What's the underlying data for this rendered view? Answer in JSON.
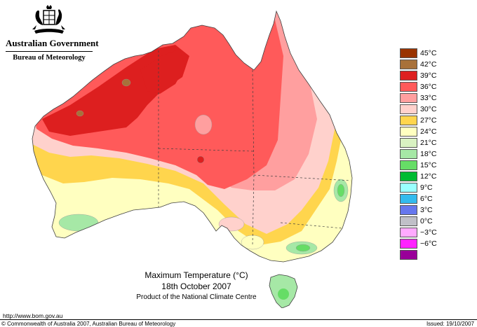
{
  "header": {
    "government": "Australian Government",
    "bureau": "Bureau of Meteorology"
  },
  "map": {
    "title": "Maximum Temperature (°C)",
    "date": "18th October 2007",
    "product": "Product of the National Climate Centre",
    "colors": {
      "land_cooler": "#ffffc0",
      "ocean": "#ffffff",
      "c15": "#66dd66",
      "c18": "#a6e8a6",
      "c21": "#d9f2c2",
      "c24": "#ffffc0",
      "c27": "#ffd54d",
      "c30": "#ffd1cc",
      "c33": "#ff9f9f",
      "c36": "#ff5a5a",
      "c39": "#dd1f1f",
      "c42": "#a8713a",
      "border": "#404040"
    }
  },
  "legend": [
    {
      "label": "45°C",
      "color": "#993300"
    },
    {
      "label": "42°C",
      "color": "#a8713a"
    },
    {
      "label": "39°C",
      "color": "#dd1f1f"
    },
    {
      "label": "36°C",
      "color": "#ff5a5a"
    },
    {
      "label": "33°C",
      "color": "#ff9f9f"
    },
    {
      "label": "30°C",
      "color": "#ffd1cc"
    },
    {
      "label": "27°C",
      "color": "#ffd54d"
    },
    {
      "label": "24°C",
      "color": "#ffffc0"
    },
    {
      "label": "21°C",
      "color": "#d9f2c2"
    },
    {
      "label": "18°C",
      "color": "#a6e8a6"
    },
    {
      "label": "15°C",
      "color": "#66dd66"
    },
    {
      "label": "12°C",
      "color": "#00bb33"
    },
    {
      "label": "9°C",
      "color": "#99ffff"
    },
    {
      "label": "6°C",
      "color": "#33bbee"
    },
    {
      "label": "3°C",
      "color": "#6677ee"
    },
    {
      "label": "0°C",
      "color": "#c0c0c8"
    },
    {
      "label": "−3°C",
      "color": "#ffaaff"
    },
    {
      "label": "−6°C",
      "color": "#ff22ff"
    },
    {
      "label": "",
      "color": "#990099"
    }
  ],
  "footer": {
    "url": "http://www.bom.gov.au",
    "copyright": "© Commonwealth of Australia 2007, Australian Bureau of Meteorology",
    "issued": "Issued: 19/10/2007"
  }
}
